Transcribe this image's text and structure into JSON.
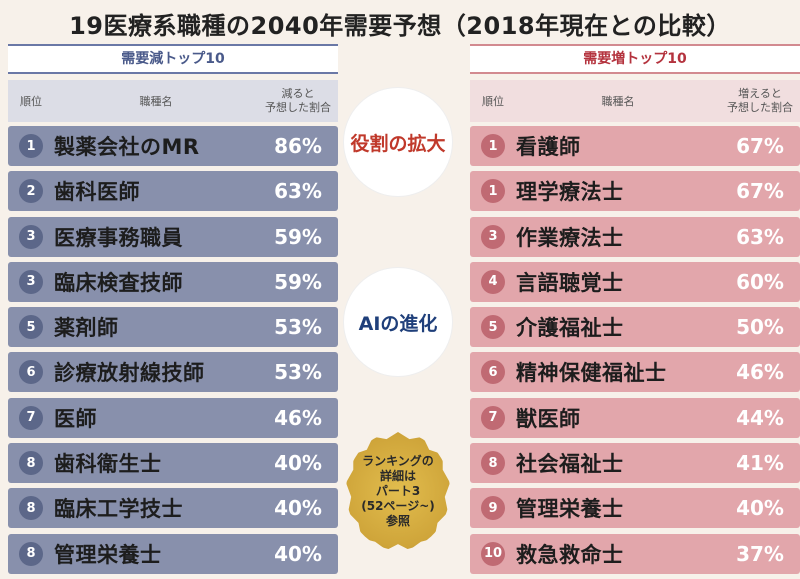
{
  "title": "19医療系職種の2040年需要予想（2018年現在との比較）",
  "decrease": {
    "label": "需要減トップ10",
    "header": {
      "rank": "順位",
      "name": "職種名",
      "pct": "減ると\n予想した割合"
    },
    "rows": [
      {
        "rank": "1",
        "name": "製薬会社のMR",
        "pct": "86%"
      },
      {
        "rank": "2",
        "name": "歯科医師",
        "pct": "63%"
      },
      {
        "rank": "3",
        "name": "医療事務職員",
        "pct": "59%"
      },
      {
        "rank": "3",
        "name": "臨床検査技師",
        "pct": "59%"
      },
      {
        "rank": "5",
        "name": "薬剤師",
        "pct": "53%"
      },
      {
        "rank": "6",
        "name": "診療放射線技師",
        "pct": "53%"
      },
      {
        "rank": "7",
        "name": "医師",
        "pct": "46%"
      },
      {
        "rank": "8",
        "name": "歯科衛生士",
        "pct": "40%"
      },
      {
        "rank": "8",
        "name": "臨床工学技士",
        "pct": "40%"
      },
      {
        "rank": "8",
        "name": "管理栄養士",
        "pct": "40%"
      }
    ]
  },
  "increase": {
    "label": "需要増トップ10",
    "header": {
      "rank": "順位",
      "name": "職種名",
      "pct": "増えると\n予想した割合"
    },
    "rows": [
      {
        "rank": "1",
        "name": "看護師",
        "pct": "67%"
      },
      {
        "rank": "1",
        "name": "理学療法士",
        "pct": "67%"
      },
      {
        "rank": "3",
        "name": "作業療法士",
        "pct": "63%"
      },
      {
        "rank": "4",
        "name": "言語聴覚士",
        "pct": "60%"
      },
      {
        "rank": "5",
        "name": "介護福祉士",
        "pct": "50%"
      },
      {
        "rank": "6",
        "name": "精神保健福祉士",
        "pct": "46%"
      },
      {
        "rank": "7",
        "name": "獣医師",
        "pct": "44%"
      },
      {
        "rank": "8",
        "name": "社会福祉士",
        "pct": "41%"
      },
      {
        "rank": "9",
        "name": "管理栄養士",
        "pct": "40%"
      },
      {
        "rank": "10",
        "name": "救急救命士",
        "pct": "37%"
      }
    ]
  },
  "callouts": {
    "role": "役割の拡大",
    "ai": "AIの進化"
  },
  "seal": "ランキングの\n詳細は\nパート3\n(52ページ~)\n参照"
}
